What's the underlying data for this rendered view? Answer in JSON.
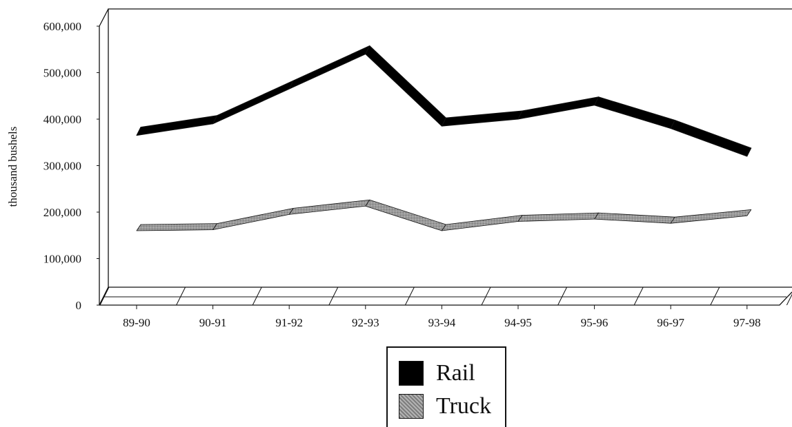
{
  "chart_data": {
    "type": "line",
    "title": "",
    "xlabel": "",
    "ylabel": "thousand bushels",
    "ylim": [
      0,
      600000
    ],
    "yticks": [
      "0",
      "100,000",
      "200,000",
      "300,000",
      "400,000",
      "500,000",
      "600,000"
    ],
    "categories": [
      "89-90",
      "90-91",
      "91-92",
      "92-93",
      "93-94",
      "94-95",
      "95-96",
      "96-97",
      "97-98"
    ],
    "series": [
      {
        "name": "Rail",
        "color": "#000000",
        "values": [
          365000,
          390000,
          465000,
          540000,
          385000,
          400000,
          430000,
          380000,
          320000
        ]
      },
      {
        "name": "Truck",
        "color": "#8c8c8c",
        "values": [
          160000,
          162000,
          195000,
          213000,
          160000,
          180000,
          185000,
          176000,
          192000
        ]
      }
    ],
    "legend_position": "bottom",
    "grid": false
  }
}
